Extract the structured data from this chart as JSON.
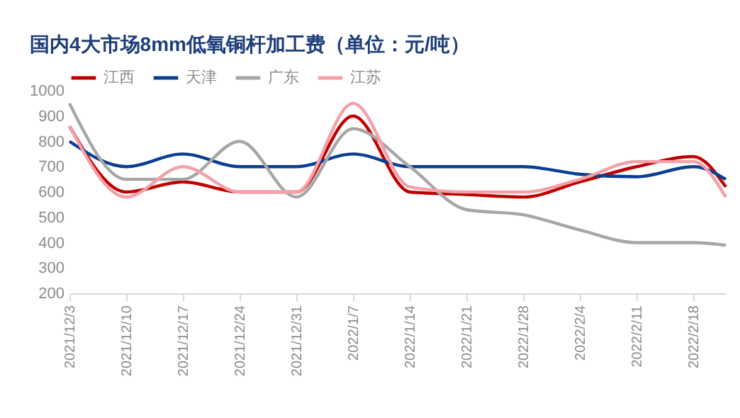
{
  "chart_data": {
    "type": "line",
    "title": "国内4大市场8mm低氧铜杆加工费（单位：元/吨）",
    "x": [
      "2021-12-03",
      "2021-12-10",
      "2021-12-17",
      "2021-12-24",
      "2021-12-31",
      "2022-01-07",
      "2022-01-14",
      "2022-01-21",
      "2022-01-28",
      "2022-02-04",
      "2022-02-11",
      "2022-02-18",
      "2022-02-22"
    ],
    "series": [
      {
        "name": "江西",
        "color": "#c00000",
        "values": [
          860,
          600,
          640,
          600,
          600,
          900,
          600,
          590,
          580,
          640,
          700,
          740,
          620
        ]
      },
      {
        "name": "天津",
        "color": "#0b3d91",
        "values": [
          800,
          700,
          750,
          700,
          700,
          750,
          700,
          700,
          700,
          670,
          660,
          700,
          650
        ]
      },
      {
        "name": "广东",
        "color": "#a6a6a6",
        "values": [
          950,
          650,
          650,
          800,
          580,
          850,
          700,
          530,
          510,
          450,
          400,
          400,
          390
        ]
      },
      {
        "name": "江苏",
        "color": "#f4a0a8",
        "values": [
          860,
          580,
          700,
          600,
          600,
          950,
          620,
          600,
          600,
          650,
          720,
          720,
          580
        ]
      }
    ],
    "xlim": [
      "2021-12-03",
      "2022-02-22"
    ],
    "xticks": [
      {
        "value": "2021-12-03",
        "label": "2021/12/3"
      },
      {
        "value": "2021-12-10",
        "label": "2021/12/10"
      },
      {
        "value": "2021-12-17",
        "label": "2021/12/17"
      },
      {
        "value": "2021-12-24",
        "label": "2021/12/24"
      },
      {
        "value": "2021-12-31",
        "label": "2021/12/31"
      },
      {
        "value": "2022-01-07",
        "label": "2022/1/7"
      },
      {
        "value": "2022-01-14",
        "label": "2022/1/14"
      },
      {
        "value": "2022-01-21",
        "label": "2022/1/21"
      },
      {
        "value": "2022-01-28",
        "label": "2022/1/28"
      },
      {
        "value": "2022-02-04",
        "label": "2022/2/4"
      },
      {
        "value": "2022-02-11",
        "label": "2022/2/11"
      },
      {
        "value": "2022-02-18",
        "label": "2022/2/18"
      }
    ],
    "ylim": [
      200,
      1000
    ],
    "yticks": [
      200,
      300,
      400,
      500,
      600,
      700,
      800,
      900,
      1000
    ],
    "grid": false,
    "legend": "top",
    "marker": "none",
    "line_style": "solid"
  }
}
